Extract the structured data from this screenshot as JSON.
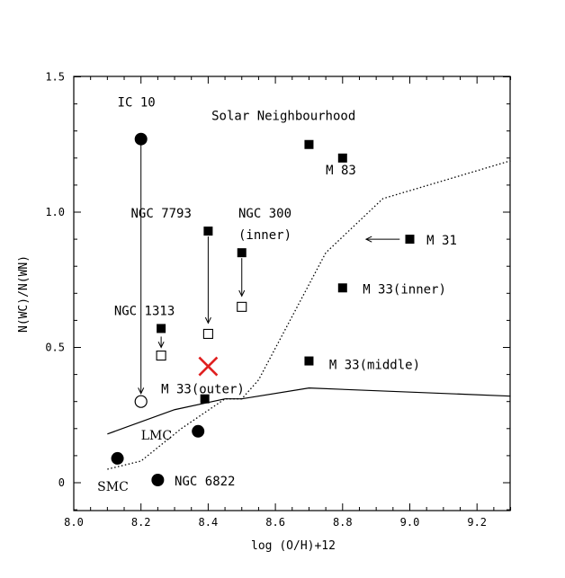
{
  "chart_data": {
    "type": "scatter",
    "xlabel": "log (O/H)+12",
    "ylabel": "N(WC)/N(WN)",
    "xlim": [
      8.0,
      9.3
    ],
    "ylim": [
      -0.1,
      1.5
    ],
    "x_ticks": [
      "8.0",
      "8.2",
      "8.4",
      "8.6",
      "8.8",
      "9.0",
      "9.2"
    ],
    "y_ticks": [
      "0",
      "0.5",
      "1.0",
      "1.5"
    ],
    "grid": false,
    "points": [
      {
        "x": 8.2,
        "y": 1.27,
        "marker": "filled-circle"
      },
      {
        "x": 8.2,
        "y": 0.3,
        "marker": "open-circle"
      },
      {
        "x": 8.13,
        "y": 0.09,
        "marker": "filled-circle"
      },
      {
        "x": 8.37,
        "y": 0.19,
        "marker": "filled-circle"
      },
      {
        "x": 8.25,
        "y": 0.01,
        "marker": "filled-circle"
      },
      {
        "x": 8.7,
        "y": 1.25,
        "marker": "filled-square"
      },
      {
        "x": 8.8,
        "y": 1.2,
        "marker": "filled-square"
      },
      {
        "x": 8.4,
        "y": 0.93,
        "marker": "filled-square"
      },
      {
        "x": 8.4,
        "y": 0.55,
        "marker": "open-square"
      },
      {
        "x": 8.5,
        "y": 0.85,
        "marker": "filled-square"
      },
      {
        "x": 8.5,
        "y": 0.65,
        "marker": "open-square"
      },
      {
        "x": 8.26,
        "y": 0.57,
        "marker": "filled-square"
      },
      {
        "x": 8.26,
        "y": 0.47,
        "marker": "open-square"
      },
      {
        "x": 9.0,
        "y": 0.9,
        "marker": "filled-square"
      },
      {
        "x": 8.8,
        "y": 0.72,
        "marker": "filled-square"
      },
      {
        "x": 8.7,
        "y": 0.45,
        "marker": "filled-square"
      },
      {
        "x": 8.39,
        "y": 0.31,
        "marker": "filled-square"
      },
      {
        "x": 8.4,
        "y": 0.43,
        "marker": "red-cross"
      }
    ],
    "arrows": [
      {
        "from": [
          8.2,
          1.25
        ],
        "to": [
          8.2,
          0.33
        ]
      },
      {
        "from": [
          8.4,
          0.91
        ],
        "to": [
          8.4,
          0.59
        ]
      },
      {
        "from": [
          8.5,
          0.83
        ],
        "to": [
          8.5,
          0.69
        ]
      },
      {
        "from": [
          8.26,
          0.54
        ],
        "to": [
          8.26,
          0.5
        ]
      },
      {
        "from": [
          8.97,
          0.9
        ],
        "to": [
          8.87,
          0.9
        ]
      }
    ],
    "series": [
      {
        "style": "solid",
        "points": [
          [
            8.1,
            0.18
          ],
          [
            8.3,
            0.27
          ],
          [
            8.45,
            0.31
          ],
          [
            8.5,
            0.31
          ],
          [
            8.7,
            0.35
          ],
          [
            9.3,
            0.32
          ]
        ]
      },
      {
        "style": "dotted",
        "points": [
          [
            8.1,
            0.05
          ],
          [
            8.2,
            0.08
          ],
          [
            8.32,
            0.2
          ],
          [
            8.45,
            0.31
          ],
          [
            8.5,
            0.31
          ],
          [
            8.55,
            0.38
          ],
          [
            8.75,
            0.85
          ],
          [
            8.92,
            1.05
          ],
          [
            9.3,
            1.19
          ]
        ]
      }
    ],
    "annotations": [
      {
        "text": "IC 10",
        "x": 8.13,
        "y": 1.39,
        "font": "mono"
      },
      {
        "text": "Solar Neighbourhood",
        "x": 8.41,
        "y": 1.34,
        "font": "mono"
      },
      {
        "text": "M 83",
        "x": 8.75,
        "y": 1.14,
        "font": "mono"
      },
      {
        "text": "NGC 7793",
        "x": 8.17,
        "y": 0.98,
        "font": "mono"
      },
      {
        "text": "NGC 300",
        "x": 8.49,
        "y": 0.98,
        "font": "mono"
      },
      {
        "text": "(inner)",
        "x": 8.49,
        "y": 0.9,
        "font": "mono"
      },
      {
        "text": "M 31",
        "x": 9.05,
        "y": 0.88,
        "font": "mono"
      },
      {
        "text": "M 33(inner)",
        "x": 8.86,
        "y": 0.7,
        "font": "mono"
      },
      {
        "text": "NGC 1313",
        "x": 8.12,
        "y": 0.62,
        "font": "mono"
      },
      {
        "text": "M 33(middle)",
        "x": 8.76,
        "y": 0.42,
        "font": "mono"
      },
      {
        "text": "M 33(outer)",
        "x": 8.26,
        "y": 0.33,
        "font": "mono"
      },
      {
        "text": "LMC",
        "x": 8.2,
        "y": 0.16,
        "font": "serif"
      },
      {
        "text": "SMC",
        "x": 8.07,
        "y": -0.03,
        "font": "serif"
      },
      {
        "text": "NGC 6822",
        "x": 8.3,
        "y": -0.01,
        "font": "mono"
      }
    ]
  }
}
